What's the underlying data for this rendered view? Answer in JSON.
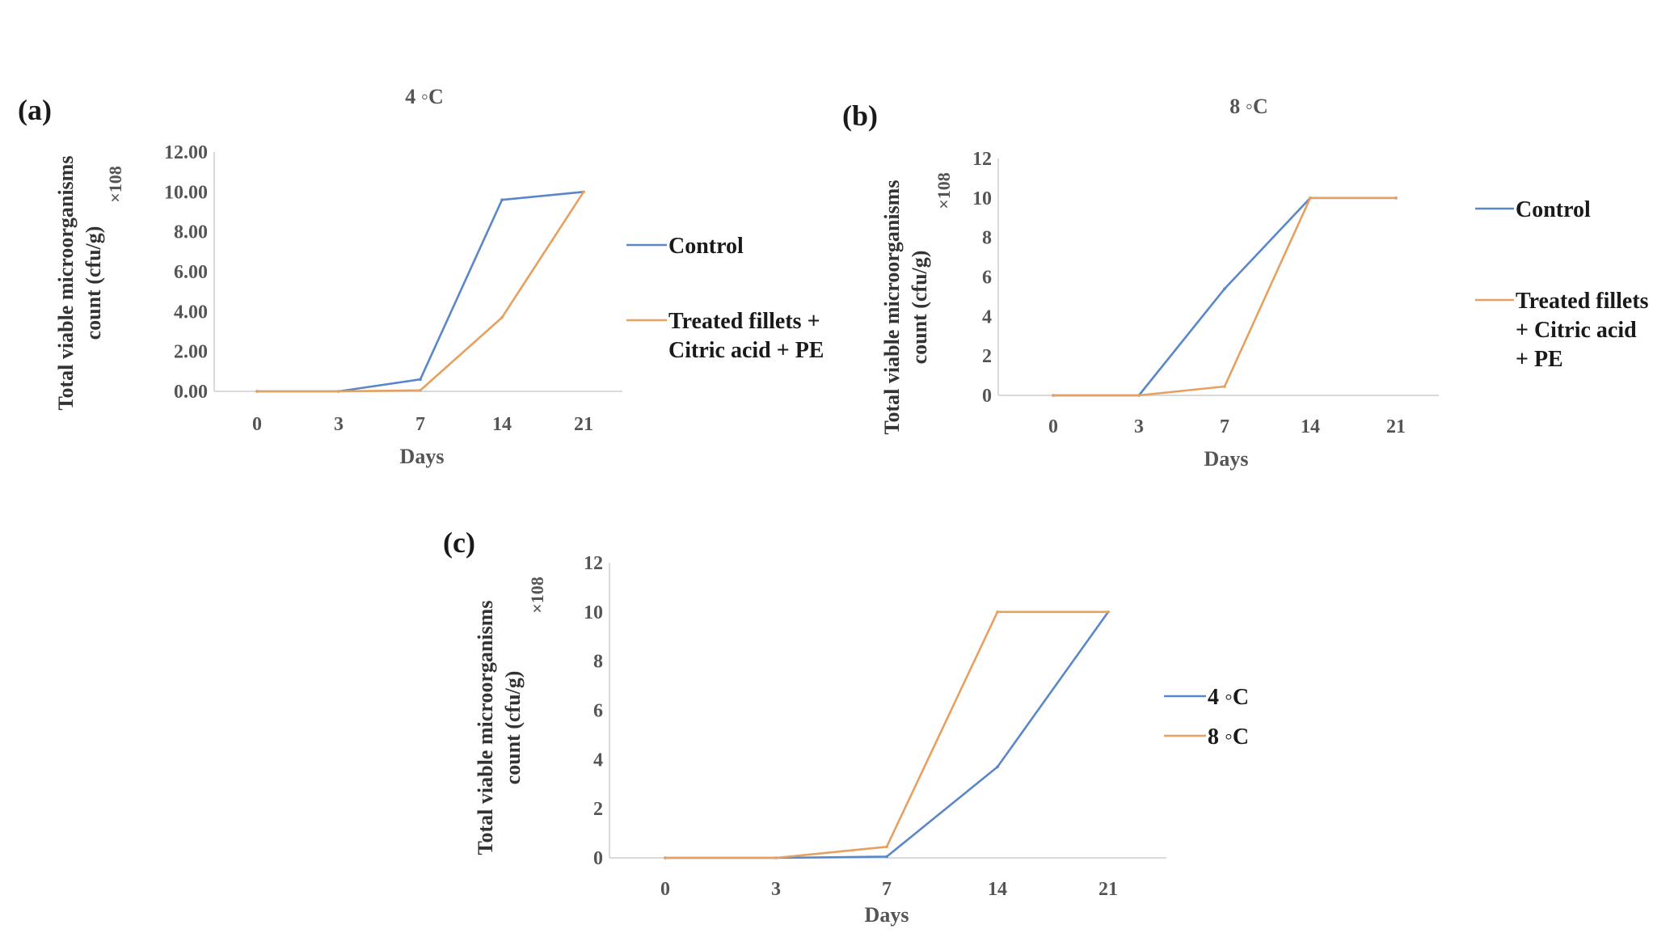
{
  "chart_data": [
    {
      "panel_label": "(a)",
      "title": "4 ◦C",
      "type": "line",
      "x": [
        "0",
        "3",
        "7",
        "14",
        "21"
      ],
      "xlabel": "Days",
      "ylabel_lines": [
        "Total viable microorganisms",
        "count (cfu/g)"
      ],
      "y_unit": "×108",
      "ylim": [
        0,
        12
      ],
      "yticks": [
        "0.00",
        "2.00",
        "4.00",
        "6.00",
        "8.00",
        "10.00",
        "12.00"
      ],
      "grid": false,
      "series": [
        {
          "name": "Control",
          "color": "#5b87c8",
          "values": [
            0,
            0,
            0.6,
            9.6,
            10
          ]
        },
        {
          "name_lines": [
            "Treated fillets +",
            "Citric acid + PE"
          ],
          "color": "#e6a060",
          "values": [
            0,
            0,
            0.05,
            3.7,
            10
          ]
        }
      ]
    },
    {
      "panel_label": "(b)",
      "title": "8 ◦C",
      "type": "line",
      "x": [
        "0",
        "3",
        "7",
        "14",
        "21"
      ],
      "xlabel": "Days",
      "ylabel_lines": [
        "Total viable microorganisms",
        "count (cfu/g)"
      ],
      "y_unit": "×108",
      "ylim": [
        0,
        12
      ],
      "yticks": [
        "0",
        "2",
        "4",
        "6",
        "8",
        "10",
        "12"
      ],
      "grid": false,
      "series": [
        {
          "name": "Control",
          "color": "#5b87c8",
          "values": [
            0,
            0,
            5.4,
            10,
            10
          ]
        },
        {
          "name_lines": [
            "Treated fillets",
            "+  Citric acid",
            "+ PE"
          ],
          "color": "#e6a060",
          "values": [
            0,
            0,
            0.45,
            10,
            10
          ]
        }
      ]
    },
    {
      "panel_label": "(c)",
      "title": "",
      "type": "line",
      "x": [
        "0",
        "3",
        "7",
        "14",
        "21"
      ],
      "xlabel": "Days",
      "ylabel_lines": [
        "Total viable microorganisms",
        "count (cfu/g)"
      ],
      "y_unit": "×108",
      "ylim": [
        0,
        12
      ],
      "yticks": [
        "0",
        "2",
        "4",
        "6",
        "8",
        "10",
        "12"
      ],
      "grid": false,
      "series": [
        {
          "name": "4 ◦C",
          "color": "#5b87c8",
          "values": [
            0,
            0,
            0.05,
            3.7,
            10
          ]
        },
        {
          "name": "8 ◦C",
          "color": "#e6a060",
          "values": [
            0,
            0,
            0.45,
            10,
            10
          ]
        }
      ]
    }
  ]
}
